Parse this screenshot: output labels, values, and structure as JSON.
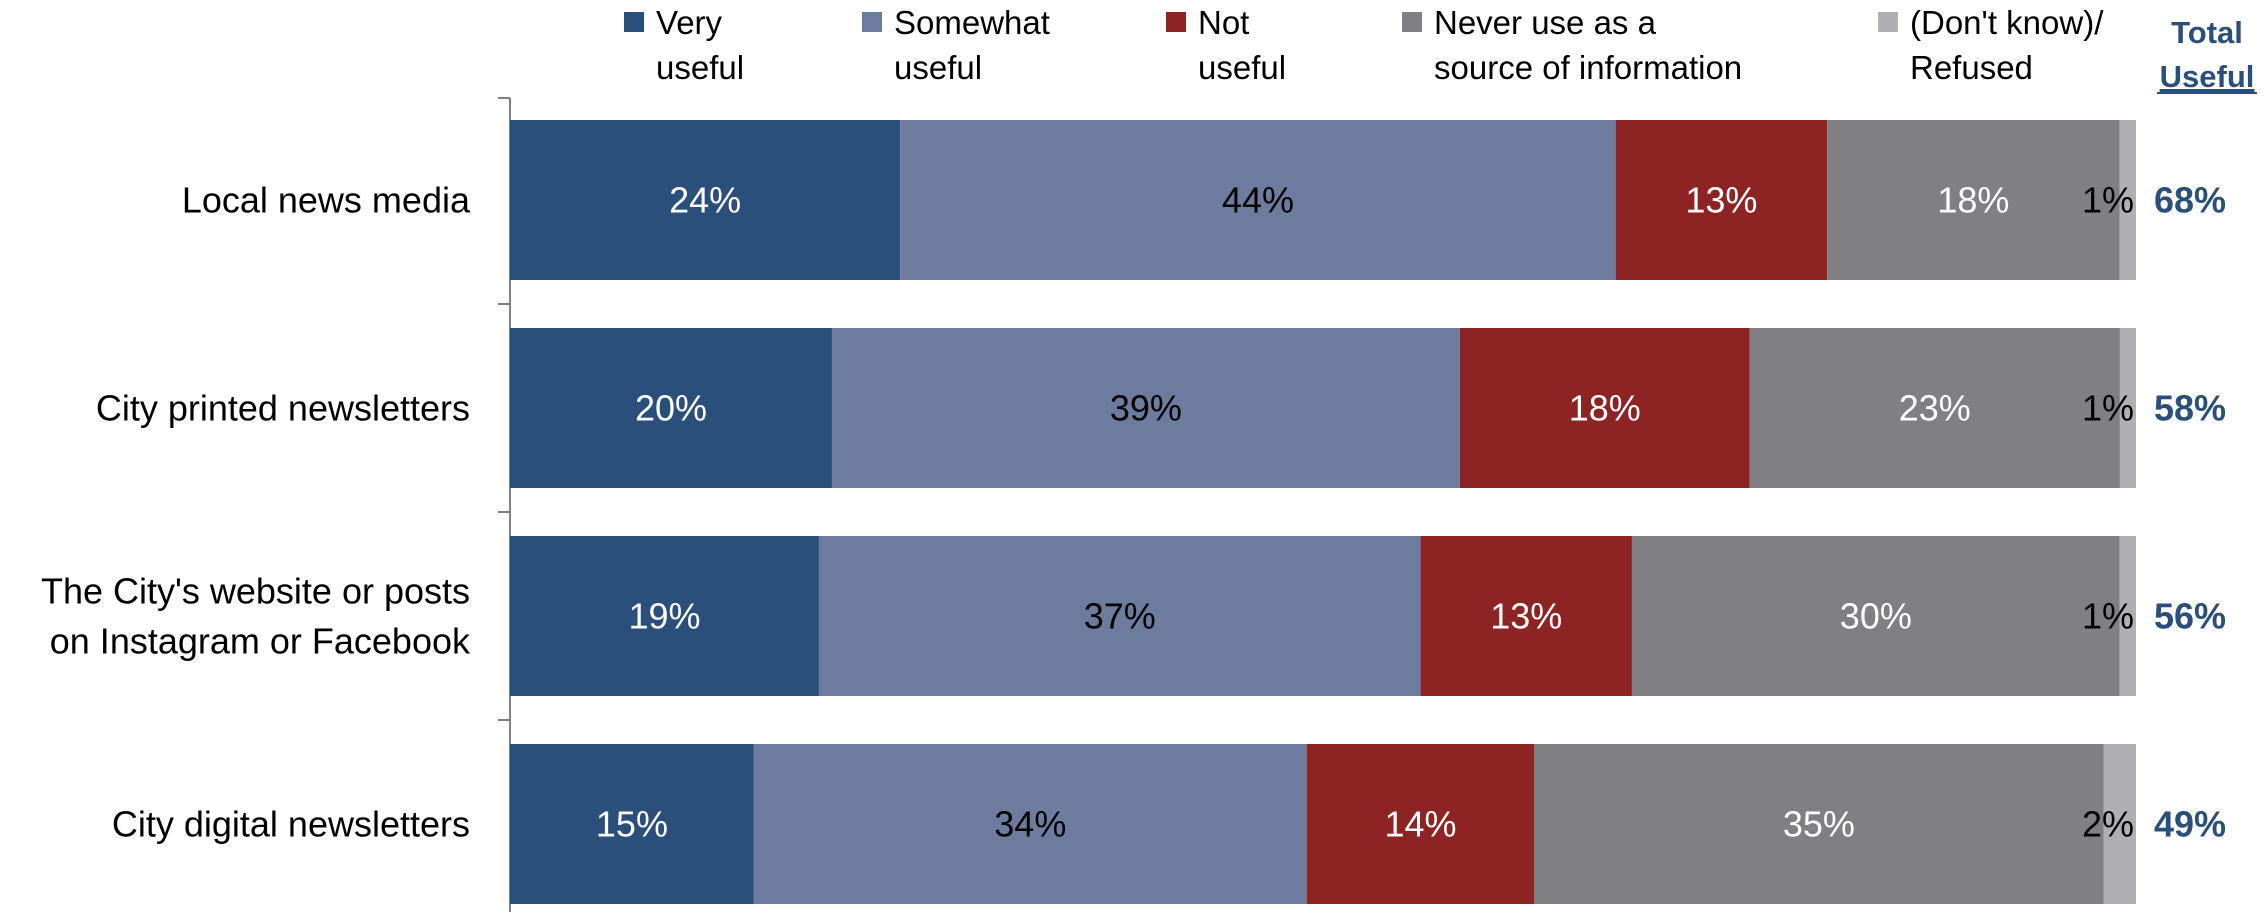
{
  "chart_data": {
    "type": "bar",
    "orientation": "horizontal",
    "stacked": true,
    "categories": [
      "Local news media",
      "City printed newsletters",
      "The City's website or posts on Instagram or Facebook",
      "City digital newsletters"
    ],
    "category_lines": [
      [
        "Local news media"
      ],
      [
        "City printed newsletters"
      ],
      [
        "The City's website or posts",
        "on Instagram or Facebook"
      ],
      [
        "City digital newsletters"
      ]
    ],
    "series": [
      {
        "name": "Very useful",
        "legend_lines": [
          "Very",
          "useful"
        ],
        "color": "#2a4f7a",
        "label_color": "#ffffff",
        "values": [
          24,
          20,
          19,
          15
        ]
      },
      {
        "name": "Somewhat useful",
        "legend_lines": [
          "Somewhat",
          "useful"
        ],
        "color": "#6d7b9f",
        "label_color": "#000000",
        "values": [
          44,
          39,
          37,
          34
        ]
      },
      {
        "name": "Not useful",
        "legend_lines": [
          "Not",
          "useful"
        ],
        "color": "#8e2323",
        "label_color": "#ffffff",
        "values": [
          13,
          18,
          13,
          14
        ]
      },
      {
        "name": "Never use as a source of information",
        "legend_lines": [
          "Never use as a",
          "source of information"
        ],
        "color": "#808084",
        "label_color": "#ffffff",
        "values": [
          18,
          23,
          30,
          35
        ]
      },
      {
        "name": "(Don't know)/ Refused",
        "legend_lines": [
          "(Don't know)/",
          "Refused"
        ],
        "color": "#b0b0b4",
        "label_color": "#000000",
        "values": [
          1,
          1,
          1,
          2
        ]
      }
    ],
    "value_suffix": "%",
    "total_useful": {
      "header_lines": [
        "Total",
        "Useful"
      ],
      "values": [
        68,
        58,
        56,
        49
      ],
      "color": "#2a4f7a"
    },
    "legend_position": "top",
    "grid": false
  }
}
